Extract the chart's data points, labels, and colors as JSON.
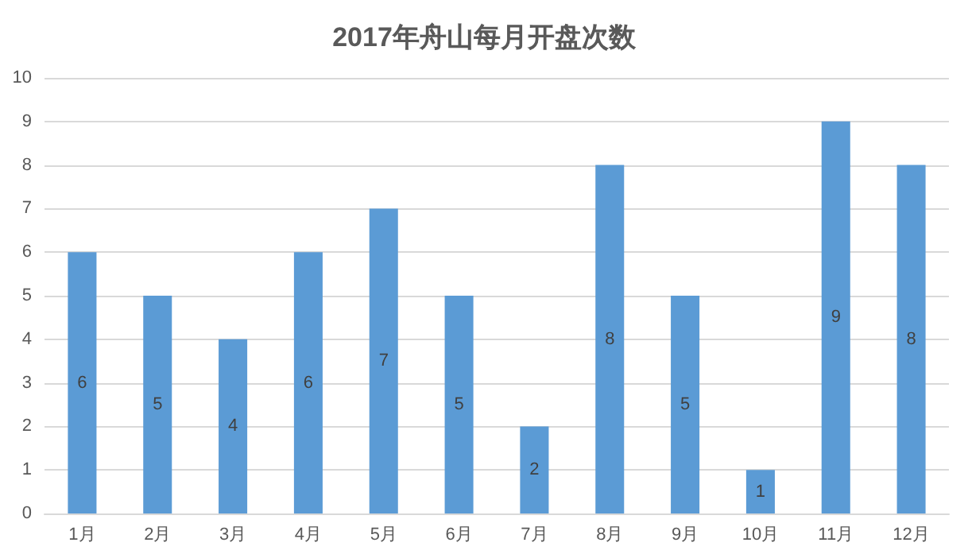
{
  "chart_data": {
    "type": "bar",
    "title": "2017年舟山每月开盘次数",
    "categories": [
      "1月",
      "2月",
      "3月",
      "4月",
      "5月",
      "6月",
      "7月",
      "8月",
      "9月",
      "10月",
      "11月",
      "12月"
    ],
    "values": [
      6,
      5,
      4,
      6,
      7,
      5,
      2,
      8,
      5,
      1,
      9,
      8
    ],
    "color": "#5b9bd5",
    "ylim": [
      0,
      10
    ],
    "yticks": [
      0,
      1,
      2,
      3,
      4,
      5,
      6,
      7,
      8,
      9,
      10
    ],
    "grid": "y",
    "data_labels": true
  }
}
